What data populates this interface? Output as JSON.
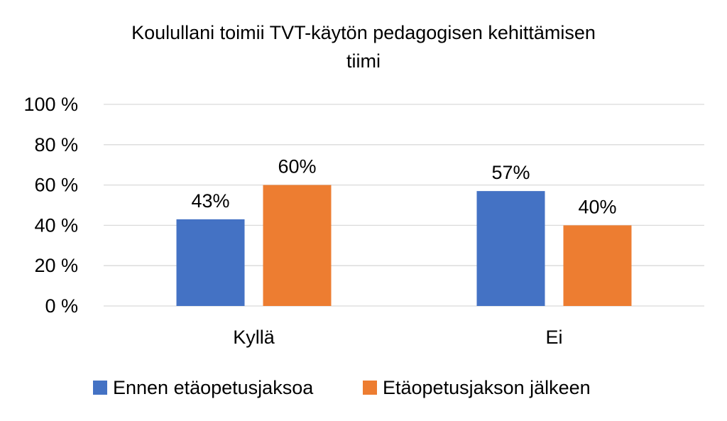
{
  "chart_data": {
    "type": "bar",
    "title_lines": [
      "Koulullani toimii TVT-käytön pedagogisen kehittämisen",
      "tiimi"
    ],
    "categories": [
      "Kyllä",
      "Ei"
    ],
    "series": [
      {
        "name": "Ennen etäopetusjaksoa",
        "values": [
          43,
          57
        ],
        "labels": [
          "43%",
          "57%"
        ],
        "color": "#4472C4"
      },
      {
        "name": "Etäopetusjakson jälkeen",
        "values": [
          60,
          40
        ],
        "labels": [
          "60%",
          "40%"
        ],
        "color": "#ED7D31"
      }
    ],
    "ylim": [
      0,
      100
    ],
    "yticks": [
      0,
      20,
      40,
      60,
      80,
      100
    ],
    "ytick_labels": [
      "0 %",
      "20 %",
      "40 %",
      "60 %",
      "80 %",
      "100 %"
    ],
    "grid": true,
    "gridline_color": "#D9D9D9",
    "legend_position": "bottom",
    "xlabel": "",
    "ylabel": ""
  }
}
